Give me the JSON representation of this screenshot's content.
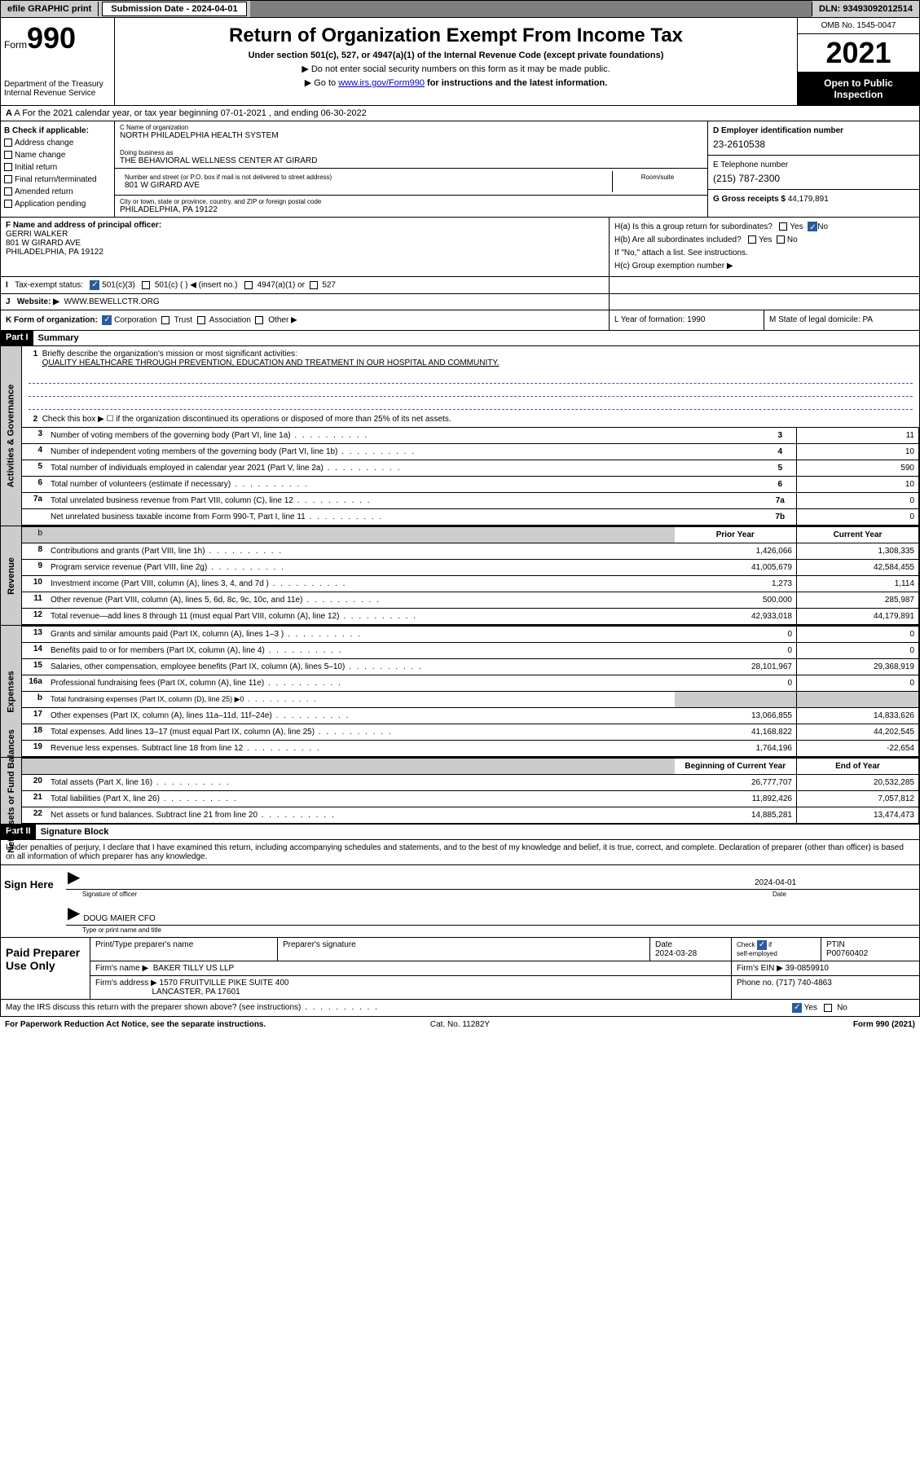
{
  "topbar": {
    "efile": "efile GRAPHIC print",
    "submission": "Submission Date - 2024-04-01",
    "dln": "DLN: 93493092012514"
  },
  "header": {
    "form_prefix": "Form",
    "form_num": "990",
    "dept": "Department of the Treasury",
    "irs": "Internal Revenue Service",
    "title": "Return of Organization Exempt From Income Tax",
    "sub": "Under section 501(c), 527, or 4947(a)(1) of the Internal Revenue Code (except private foundations)",
    "note1": "▶ Do not enter social security numbers on this form as it may be made public.",
    "note2_pre": "▶ Go to ",
    "note2_link": "www.irs.gov/Form990",
    "note2_post": " for instructions and the latest information.",
    "omb": "OMB No. 1545-0047",
    "year": "2021",
    "open": "Open to Public Inspection"
  },
  "rowA": "A For the 2021 calendar year, or tax year beginning 07-01-2021   , and ending 06-30-2022",
  "colB": {
    "label": "B Check if applicable:",
    "opts": [
      "Address change",
      "Name change",
      "Initial return",
      "Final return/terminated",
      "Amended return",
      "Application pending"
    ]
  },
  "colC": {
    "name_lbl": "C Name of organization",
    "name": "NORTH PHILADELPHIA HEALTH SYSTEM",
    "dba_lbl": "Doing business as",
    "dba": "THE BEHAVIORAL WELLNESS CENTER AT GIRARD",
    "addr_lbl": "Number and street (or P.O. box if mail is not delivered to street address)",
    "room_lbl": "Room/suite",
    "addr": "801 W GIRARD AVE",
    "city_lbl": "City or town, state or province, country, and ZIP or foreign postal code",
    "city": "PHILADELPHIA, PA  19122"
  },
  "colD": {
    "ein_lbl": "D Employer identification number",
    "ein": "23-2610538",
    "tel_lbl": "E Telephone number",
    "tel": "(215) 787-2300",
    "gross_lbl": "G Gross receipts $",
    "gross": "44,179,891"
  },
  "rowF": {
    "lbl": "F Name and address of principal officer:",
    "name": "GERRI WALKER",
    "addr1": "801 W GIRARD AVE",
    "addr2": "PHILADELPHIA, PA  19122"
  },
  "rowH": {
    "ha": "H(a)  Is this a group return for subordinates?",
    "hb": "H(b)  Are all subordinates included?",
    "hb2": "If \"No,\" attach a list. See instructions.",
    "hc": "H(c)  Group exemption number ▶",
    "yes": "Yes",
    "no": "No"
  },
  "rowI": {
    "lbl": "Tax-exempt status:",
    "o1": "501(c)(3)",
    "o2": "501(c) (  ) ◀ (insert no.)",
    "o3": "4947(a)(1) or",
    "o4": "527"
  },
  "rowJ": {
    "lbl": "Website: ▶",
    "val": "WWW.BEWELLCTR.ORG"
  },
  "rowK": {
    "lbl": "K Form of organization:",
    "corp": "Corporation",
    "trust": "Trust",
    "assoc": "Association",
    "other": "Other ▶",
    "l": "L Year of formation: 1990",
    "m": "M State of legal domicile: PA"
  },
  "part1": {
    "hdr": "Part I",
    "title": "Summary",
    "l1a": "Briefly describe the organization's mission or most significant activities:",
    "l1b": "QUALITY HEALTHCARE THROUGH PREVENTION, EDUCATION AND TREATMENT IN OUR HOSPITAL AND COMMUNITY.",
    "l2": "Check this box ▶ ☐  if the organization discontinued its operations or disposed of more than 25% of its net assets.",
    "tabs": {
      "gov": "Activities & Governance",
      "rev": "Revenue",
      "exp": "Expenses",
      "net": "Net Assets or Fund Balances"
    }
  },
  "govLines": [
    {
      "n": "3",
      "d": "Number of voting members of the governing body (Part VI, line 1a)",
      "b": "3",
      "v": "11"
    },
    {
      "n": "4",
      "d": "Number of independent voting members of the governing body (Part VI, line 1b)",
      "b": "4",
      "v": "10"
    },
    {
      "n": "5",
      "d": "Total number of individuals employed in calendar year 2021 (Part V, line 2a)",
      "b": "5",
      "v": "590"
    },
    {
      "n": "6",
      "d": "Total number of volunteers (estimate if necessary)",
      "b": "6",
      "v": "10"
    },
    {
      "n": "7a",
      "d": "Total unrelated business revenue from Part VIII, column (C), line 12",
      "b": "7a",
      "v": "0"
    },
    {
      "n": "",
      "d": "Net unrelated business taxable income from Form 990-T, Part I, line 11",
      "b": "7b",
      "v": "0"
    }
  ],
  "yearHdr": {
    "prior": "Prior Year",
    "curr": "Current Year"
  },
  "revLines": [
    {
      "n": "8",
      "d": "Contributions and grants (Part VIII, line 1h)",
      "p": "1,426,066",
      "c": "1,308,335"
    },
    {
      "n": "9",
      "d": "Program service revenue (Part VIII, line 2g)",
      "p": "41,005,679",
      "c": "42,584,455"
    },
    {
      "n": "10",
      "d": "Investment income (Part VIII, column (A), lines 3, 4, and 7d )",
      "p": "1,273",
      "c": "1,114"
    },
    {
      "n": "11",
      "d": "Other revenue (Part VIII, column (A), lines 5, 6d, 8c, 9c, 10c, and 11e)",
      "p": "500,000",
      "c": "285,987"
    },
    {
      "n": "12",
      "d": "Total revenue—add lines 8 through 11 (must equal Part VIII, column (A), line 12)",
      "p": "42,933,018",
      "c": "44,179,891"
    }
  ],
  "expLines": [
    {
      "n": "13",
      "d": "Grants and similar amounts paid (Part IX, column (A), lines 1–3 )",
      "p": "0",
      "c": "0"
    },
    {
      "n": "14",
      "d": "Benefits paid to or for members (Part IX, column (A), line 4)",
      "p": "0",
      "c": "0"
    },
    {
      "n": "15",
      "d": "Salaries, other compensation, employee benefits (Part IX, column (A), lines 5–10)",
      "p": "28,101,967",
      "c": "29,368,919"
    },
    {
      "n": "16a",
      "d": "Professional fundraising fees (Part IX, column (A), line 11e)",
      "p": "0",
      "c": "0"
    },
    {
      "n": "b",
      "d": "Total fundraising expenses (Part IX, column (D), line 25) ▶0",
      "p": "",
      "c": "",
      "shade": true,
      "small": true
    },
    {
      "n": "17",
      "d": "Other expenses (Part IX, column (A), lines 11a–11d, 11f–24e)",
      "p": "13,066,855",
      "c": "14,833,626"
    },
    {
      "n": "18",
      "d": "Total expenses. Add lines 13–17 (must equal Part IX, column (A), line 25)",
      "p": "41,168,822",
      "c": "44,202,545"
    },
    {
      "n": "19",
      "d": "Revenue less expenses. Subtract line 18 from line 12",
      "p": "1,764,196",
      "c": "-22,654"
    }
  ],
  "netHdr": {
    "beg": "Beginning of Current Year",
    "end": "End of Year"
  },
  "netLines": [
    {
      "n": "20",
      "d": "Total assets (Part X, line 16)",
      "p": "26,777,707",
      "c": "20,532,285"
    },
    {
      "n": "21",
      "d": "Total liabilities (Part X, line 26)",
      "p": "11,892,426",
      "c": "7,057,812"
    },
    {
      "n": "22",
      "d": "Net assets or fund balances. Subtract line 21 from line 20",
      "p": "14,885,281",
      "c": "13,474,473"
    }
  ],
  "part2": {
    "hdr": "Part II",
    "title": "Signature Block",
    "decl": "Under penalties of perjury, I declare that I have examined this return, including accompanying schedules and statements, and to the best of my knowledge and belief, it is true, correct, and complete. Declaration of preparer (other than officer) is based on all information of which preparer has any knowledge."
  },
  "sign": {
    "here": "Sign Here",
    "sig_lbl": "Signature of officer",
    "date_lbl": "Date",
    "date": "2024-04-01",
    "name": "DOUG MAIER CFO",
    "name_lbl": "Type or print name and title"
  },
  "paid": {
    "lbl": "Paid Preparer Use Only",
    "h1": "Print/Type preparer's name",
    "h2": "Preparer's signature",
    "h3": "Date",
    "h4": "Check ☑ if self-employed",
    "h5": "PTIN",
    "date": "2024-03-28",
    "ptin": "P00760402",
    "firm_lbl": "Firm's name   ▶",
    "firm": "BAKER TILLY US LLP",
    "ein_lbl": "Firm's EIN ▶",
    "ein": "39-0859910",
    "addr_lbl": "Firm's address ▶",
    "addr1": "1570 FRUITVILLE PIKE SUITE 400",
    "addr2": "LANCASTER, PA  17601",
    "phone_lbl": "Phone no.",
    "phone": "(717) 740-4863"
  },
  "footer": {
    "discuss": "May the IRS discuss this return with the preparer shown above? (see instructions)",
    "yes": "Yes",
    "no": "No",
    "pra": "For Paperwork Reduction Act Notice, see the separate instructions.",
    "cat": "Cat. No. 11282Y",
    "form": "Form 990 (2021)"
  },
  "style": {
    "bg": "#ffffff",
    "text": "#000000",
    "shade": "#cccccc",
    "dark": "#7f7f7f",
    "check_blue": "#2c5aa0",
    "link": "#0000cc",
    "dash": "#5050b0",
    "font_base": 10,
    "font_title": 24,
    "font_year": 36,
    "font_form": 36
  }
}
